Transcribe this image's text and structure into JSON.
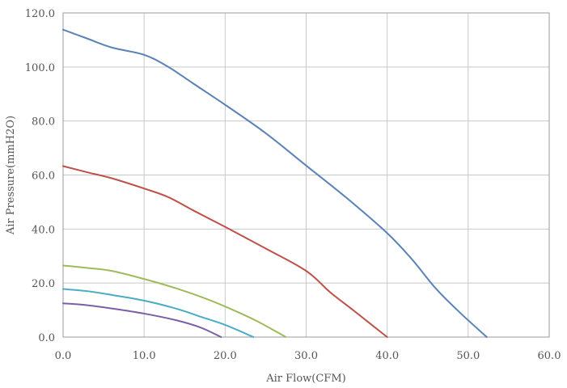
{
  "chart_data": {
    "type": "line",
    "title": "",
    "xlabel": "Air Flow(CFM)",
    "ylabel": "Air Pressure(mmH2O)",
    "xlim": [
      0,
      60
    ],
    "ylim": [
      0,
      120
    ],
    "x_ticks": [
      "0.0",
      "10.0",
      "20.0",
      "30.0",
      "40.0",
      "50.0",
      "60.0"
    ],
    "y_ticks": [
      "0.0",
      "20.0",
      "40.0",
      "60.0",
      "80.0",
      "100.0",
      "120.0"
    ],
    "x_tick_values": [
      0,
      10,
      20,
      30,
      40,
      50,
      60
    ],
    "y_tick_values": [
      0,
      20,
      40,
      60,
      80,
      100,
      120
    ],
    "grid": true,
    "legend": "none",
    "series": [
      {
        "color": "#5b82b6",
        "points": [
          [
            0,
            113.8
          ],
          [
            3,
            110.5
          ],
          [
            6,
            107.2
          ],
          [
            10,
            104.5
          ],
          [
            13,
            100.0
          ],
          [
            16,
            94.0
          ],
          [
            20,
            86.0
          ],
          [
            25,
            75.5
          ],
          [
            30,
            63.5
          ],
          [
            35,
            51.5
          ],
          [
            40,
            38.5
          ],
          [
            43,
            29.0
          ],
          [
            46,
            18.0
          ],
          [
            49,
            9.0
          ],
          [
            52.3,
            0
          ]
        ]
      },
      {
        "color": "#bf5048",
        "points": [
          [
            0,
            63.3
          ],
          [
            3,
            61.0
          ],
          [
            6,
            58.8
          ],
          [
            10,
            55.0
          ],
          [
            13,
            51.8
          ],
          [
            16,
            47.0
          ],
          [
            20,
            40.8
          ],
          [
            25,
            32.8
          ],
          [
            30,
            24.5
          ],
          [
            33,
            16.5
          ],
          [
            36,
            9.5
          ],
          [
            40,
            0
          ]
        ]
      },
      {
        "color": "#9fba5a",
        "points": [
          [
            0,
            26.5
          ],
          [
            3,
            25.6
          ],
          [
            6,
            24.5
          ],
          [
            10,
            21.5
          ],
          [
            14,
            18.0
          ],
          [
            18,
            13.8
          ],
          [
            21,
            10.0
          ],
          [
            24,
            5.8
          ],
          [
            27.5,
            0
          ]
        ]
      },
      {
        "color": "#4bacc6",
        "points": [
          [
            0,
            17.8
          ],
          [
            3,
            17.0
          ],
          [
            6,
            15.6
          ],
          [
            10,
            13.5
          ],
          [
            14,
            10.5
          ],
          [
            17,
            7.5
          ],
          [
            20,
            4.5
          ],
          [
            23.5,
            0
          ]
        ]
      },
      {
        "color": "#7b5ea6",
        "points": [
          [
            0,
            12.5
          ],
          [
            3,
            11.8
          ],
          [
            6,
            10.6
          ],
          [
            10,
            8.7
          ],
          [
            14,
            6.2
          ],
          [
            17,
            3.5
          ],
          [
            19.5,
            0
          ]
        ]
      }
    ]
  }
}
